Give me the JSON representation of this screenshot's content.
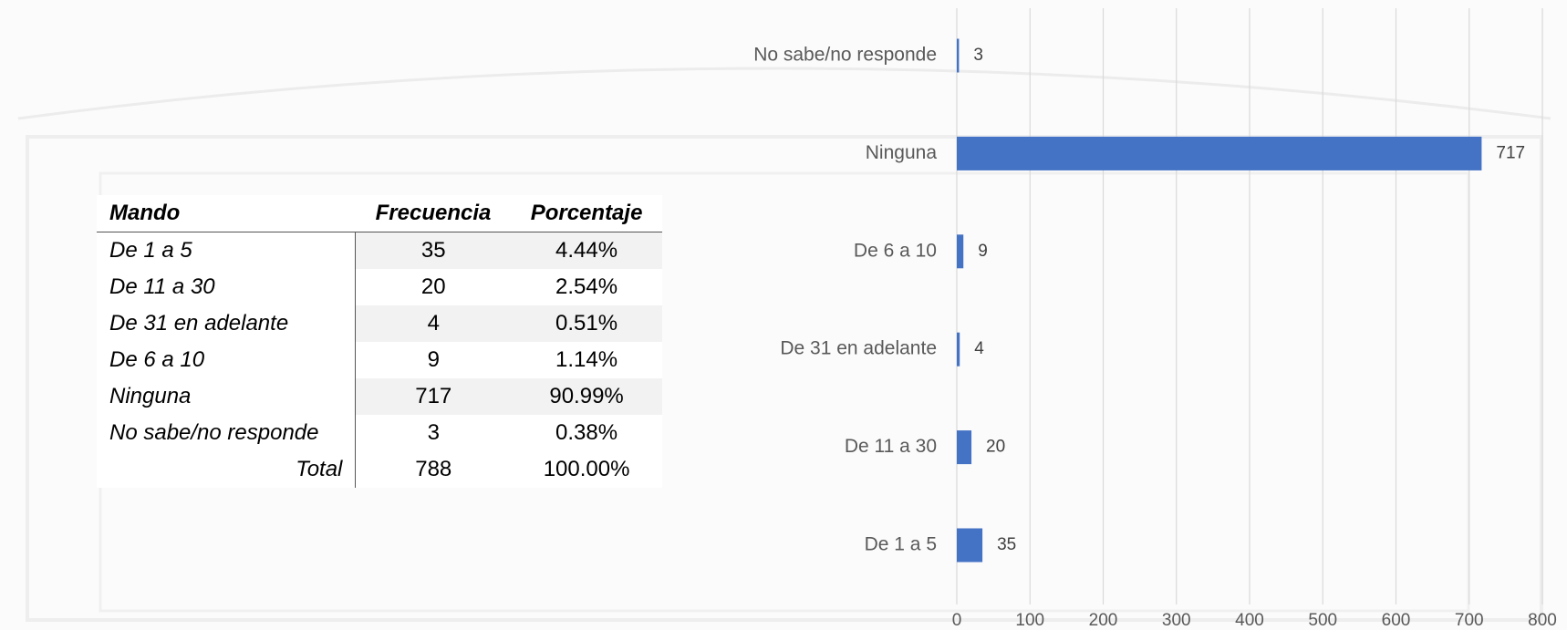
{
  "chart_data": {
    "type": "bar",
    "orientation": "horizontal",
    "categories": [
      "No sabe/no responde",
      "Ninguna",
      "De 6 a 10",
      "De 31 en adelante",
      "De 11 a 30",
      "De 1 a 5"
    ],
    "values": [
      3,
      717,
      9,
      4,
      20,
      35
    ],
    "color": "#4472c4",
    "xlim": [
      0,
      800
    ],
    "xticks": [
      0,
      100,
      200,
      300,
      400,
      500,
      600,
      700,
      800
    ],
    "grid": true
  },
  "table": {
    "header": [
      "Mando",
      "Frecuencia",
      "Porcentaje"
    ],
    "rows": [
      [
        "De 1 a 5",
        "35",
        "4.44%"
      ],
      [
        "De 11 a 30",
        "20",
        "2.54%"
      ],
      [
        "De 31 en adelante",
        "4",
        "0.51%"
      ],
      [
        "De 6 a 10",
        "9",
        "1.14%"
      ],
      [
        "Ninguna",
        "717",
        "90.99%"
      ],
      [
        "No sabe/no responde",
        "3",
        "0.38%"
      ],
      [
        "Total",
        "788",
        "100.00%"
      ]
    ]
  }
}
